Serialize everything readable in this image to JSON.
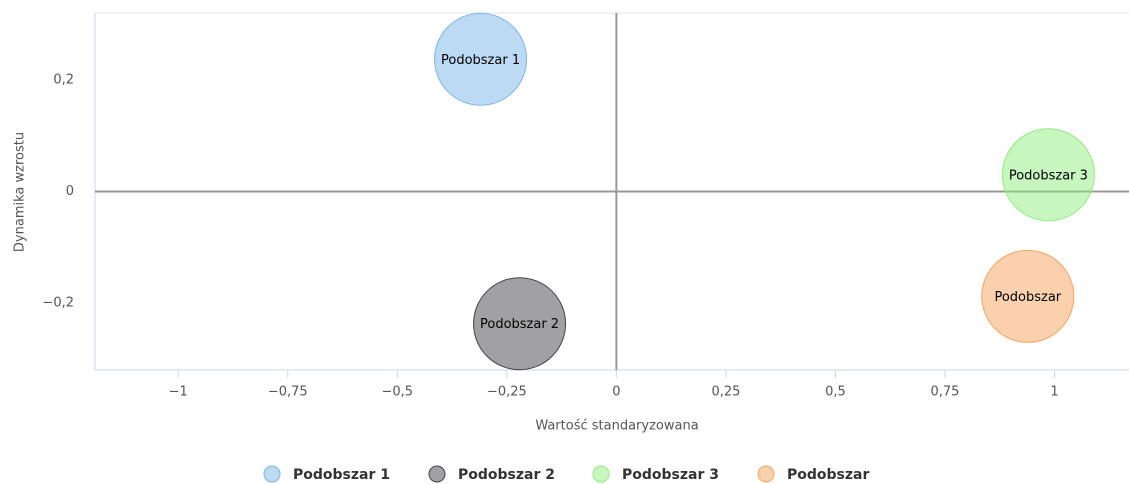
{
  "chart_data": {
    "type": "bubble",
    "x_label": "Wartość standaryzowana",
    "y_label": "Dynamika wzrostu",
    "xlim": [
      -1.19,
      1.17
    ],
    "xticks": [
      {
        "value": -1,
        "label": "−1"
      },
      {
        "value": -0.75,
        "label": "−0,75"
      },
      {
        "value": -0.5,
        "label": "−0,5"
      },
      {
        "value": -0.25,
        "label": "−0,25"
      },
      0,
      {
        "value": 0.25,
        "label": "0,25"
      },
      {
        "value": 0.5,
        "label": "0,5"
      },
      {
        "value": 0.75,
        "label": "0,75"
      },
      1
    ],
    "ylim": [
      -0.32,
      0.32
    ],
    "yticks": [
      {
        "value": -0.2,
        "label": "−0,2"
      },
      0,
      {
        "value": 0.2,
        "label": "0,2"
      }
    ],
    "series": [
      {
        "name": "Podobszar 1",
        "color": "#7cb5ec",
        "x": -0.31,
        "y": 0.237,
        "size": 10
      },
      {
        "name": "Podobszar 2",
        "color": "#434348",
        "x": -0.221,
        "y": -0.237,
        "size": 10
      },
      {
        "name": "Podobszar 3",
        "color": "#90ed7d",
        "x": 0.986,
        "y": 0.03,
        "size": 10
      },
      {
        "name": "Podobszar",
        "color": "#f7a35c",
        "x": 0.939,
        "y": -0.188,
        "size": 10
      }
    ]
  }
}
